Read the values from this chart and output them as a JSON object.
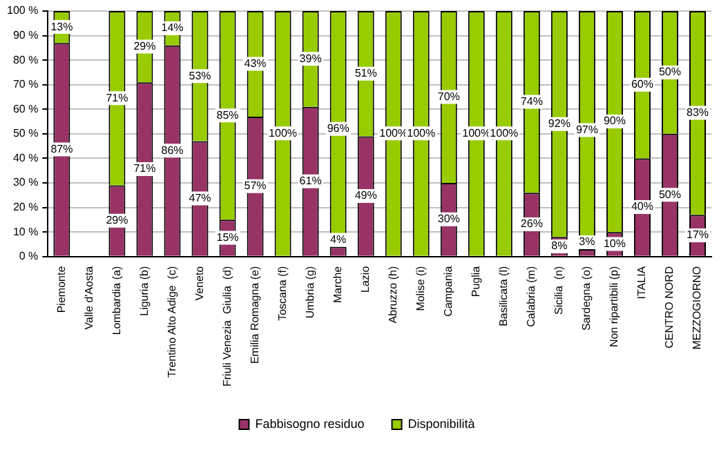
{
  "chart_data": {
    "type": "bar",
    "stacked": true,
    "categories": [
      "Piemonte",
      "Valle d'Aosta",
      "Lombardia (a)",
      "Liguria (b)",
      "Trentino Alto Adige  (c)",
      "Veneto",
      "Friuli Venezia  Giulia  (d)",
      "Emilia Romagna (e)",
      "Toscana (f)",
      "Umbria (g)",
      "Marche",
      "Lazio",
      "Abruzzo (h)",
      "Molise (i)",
      "Campania",
      "Puglia",
      "Basilicata (l)",
      "Calabria (m)",
      "Sicilia  (n)",
      "Sardegna (o)",
      "Non ripartibili (p)",
      "ITALIA",
      "CENTRO NORD",
      "MEZZOGIORNO"
    ],
    "series": [
      {
        "name": "Fabbisogno residuo",
        "color": "#993366",
        "values": [
          87,
          null,
          29,
          71,
          86,
          47,
          15,
          57,
          0,
          61,
          4,
          49,
          0,
          0,
          30,
          0,
          0,
          26,
          8,
          3,
          10,
          40,
          50,
          17
        ],
        "value_labels": [
          "87%",
          null,
          "29%",
          "71%",
          "86%",
          "47%",
          "15%",
          "57%",
          null,
          "61%",
          "4%",
          "49%",
          null,
          null,
          "30%",
          null,
          null,
          "26%",
          "8%",
          "3%",
          "10%",
          "40%",
          "50%",
          "17%"
        ]
      },
      {
        "name": "Disponibilità",
        "color": "#99cc00",
        "values": [
          13,
          null,
          71,
          29,
          14,
          53,
          85,
          43,
          100,
          39,
          96,
          51,
          100,
          100,
          70,
          100,
          100,
          74,
          92,
          97,
          90,
          60,
          50,
          83
        ],
        "value_labels": [
          "13%",
          null,
          "71%",
          "29%",
          "14%",
          "53%",
          "85%",
          "43%",
          "100%",
          "39%",
          "96%",
          "51%",
          "100%",
          "100%",
          "70%",
          "100%",
          "100%",
          "74%",
          "92%",
          "97%",
          "90%",
          "60%",
          "50%",
          "83%"
        ]
      }
    ],
    "ylim": [
      0,
      100
    ],
    "yticks": [
      {
        "value": 0,
        "label": "0 %"
      },
      {
        "value": 10,
        "label": "10 %"
      },
      {
        "value": 20,
        "label": "20 %"
      },
      {
        "value": 30,
        "label": "30 %"
      },
      {
        "value": 40,
        "label": "40 %"
      },
      {
        "value": 50,
        "label": "50 %"
      },
      {
        "value": 60,
        "label": "60 %"
      },
      {
        "value": 70,
        "label": "70 %"
      },
      {
        "value": 80,
        "label": "80 %"
      },
      {
        "value": 90,
        "label": "90 %"
      },
      {
        "value": 100,
        "label": "100 %"
      }
    ],
    "grid": "y",
    "legend": "bottom"
  }
}
